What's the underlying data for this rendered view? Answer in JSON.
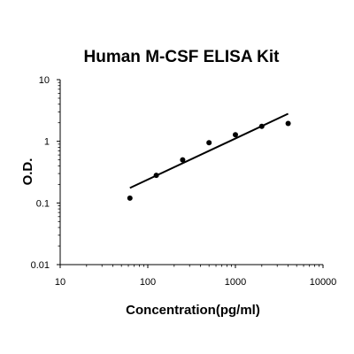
{
  "chart_data": {
    "type": "scatter",
    "title": "Human M-CSF ELISA Kit",
    "xlabel": "Concentration(pg/ml)",
    "ylabel": "O.D.",
    "x_scale": "log",
    "y_scale": "log",
    "xlim": [
      10,
      10000
    ],
    "ylim": [
      0.01,
      10
    ],
    "x_ticks": [
      "10",
      "100",
      "1000",
      "10000"
    ],
    "y_ticks": [
      "0.01",
      "0.1",
      "1",
      "10"
    ],
    "grid": false,
    "legend": "none",
    "series": [
      {
        "kind": "points",
        "x": [
          62.5,
          125,
          250,
          500,
          1000,
          2000,
          4000
        ],
        "y": [
          0.12,
          0.28,
          0.5,
          0.95,
          1.28,
          1.75,
          1.95
        ]
      },
      {
        "kind": "fit-line",
        "x": [
          62.5,
          4000
        ],
        "y": [
          0.175,
          2.8
        ]
      }
    ],
    "colors": {
      "points": "#000000",
      "line": "#000000",
      "axis": "#000000"
    }
  }
}
